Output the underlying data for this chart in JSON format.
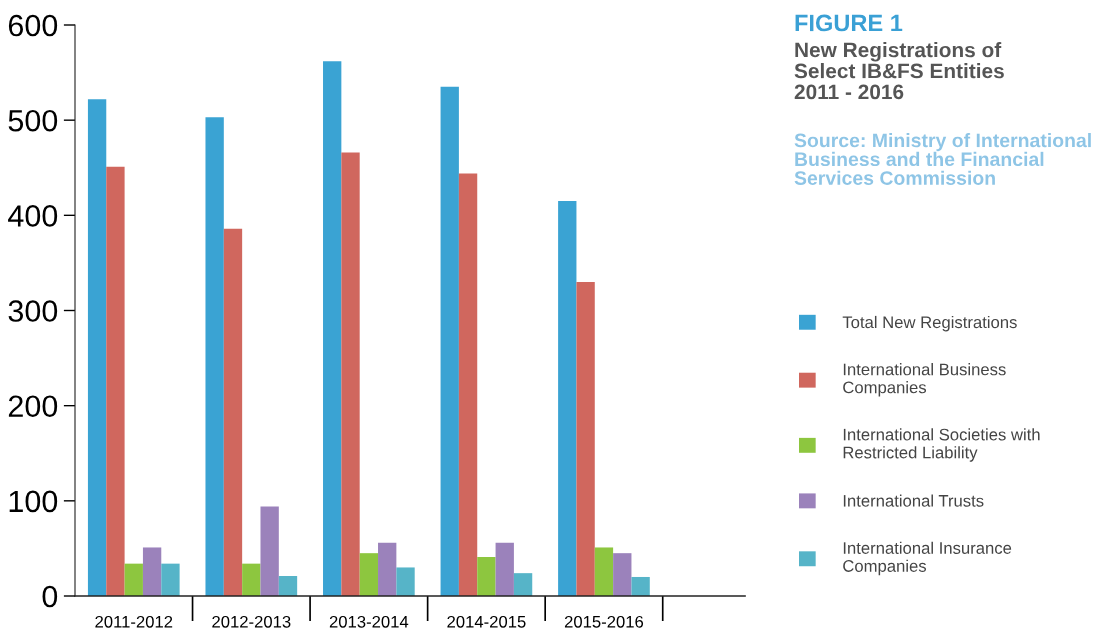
{
  "chart_data": {
    "type": "bar",
    "title": "FIGURE 1",
    "subtitle": "New Registrations of Select IB&FS Entities 2011 - 2016",
    "annotations": [
      "Source: Ministry of International Business and the Financial Services Commission"
    ],
    "categories": [
      "2011-2012",
      "2012-2013",
      "2013-2014",
      "2014-2015",
      "2015-2016"
    ],
    "series": [
      {
        "name": "Total New Registrations",
        "color": "#3aa3d3",
        "values": [
          522,
          503,
          562,
          535,
          415
        ]
      },
      {
        "name": "International Business Companies",
        "color": "#d0675e",
        "values": [
          451,
          386,
          466,
          444,
          330
        ]
      },
      {
        "name": "International Societies with Restricted Liability",
        "color": "#8dc63f",
        "values": [
          34,
          34,
          45,
          41,
          51
        ]
      },
      {
        "name": "International Trusts",
        "color": "#9b82bb",
        "values": [
          51,
          94,
          56,
          56,
          45
        ]
      },
      {
        "name": "International Insurance Companies",
        "color": "#56b4c8",
        "values": [
          34,
          21,
          30,
          24,
          20
        ]
      }
    ],
    "ylim": [
      0,
      600
    ],
    "yticks": [
      0,
      100,
      200,
      300,
      400,
      500,
      600
    ],
    "grid": false,
    "legend": "right"
  }
}
